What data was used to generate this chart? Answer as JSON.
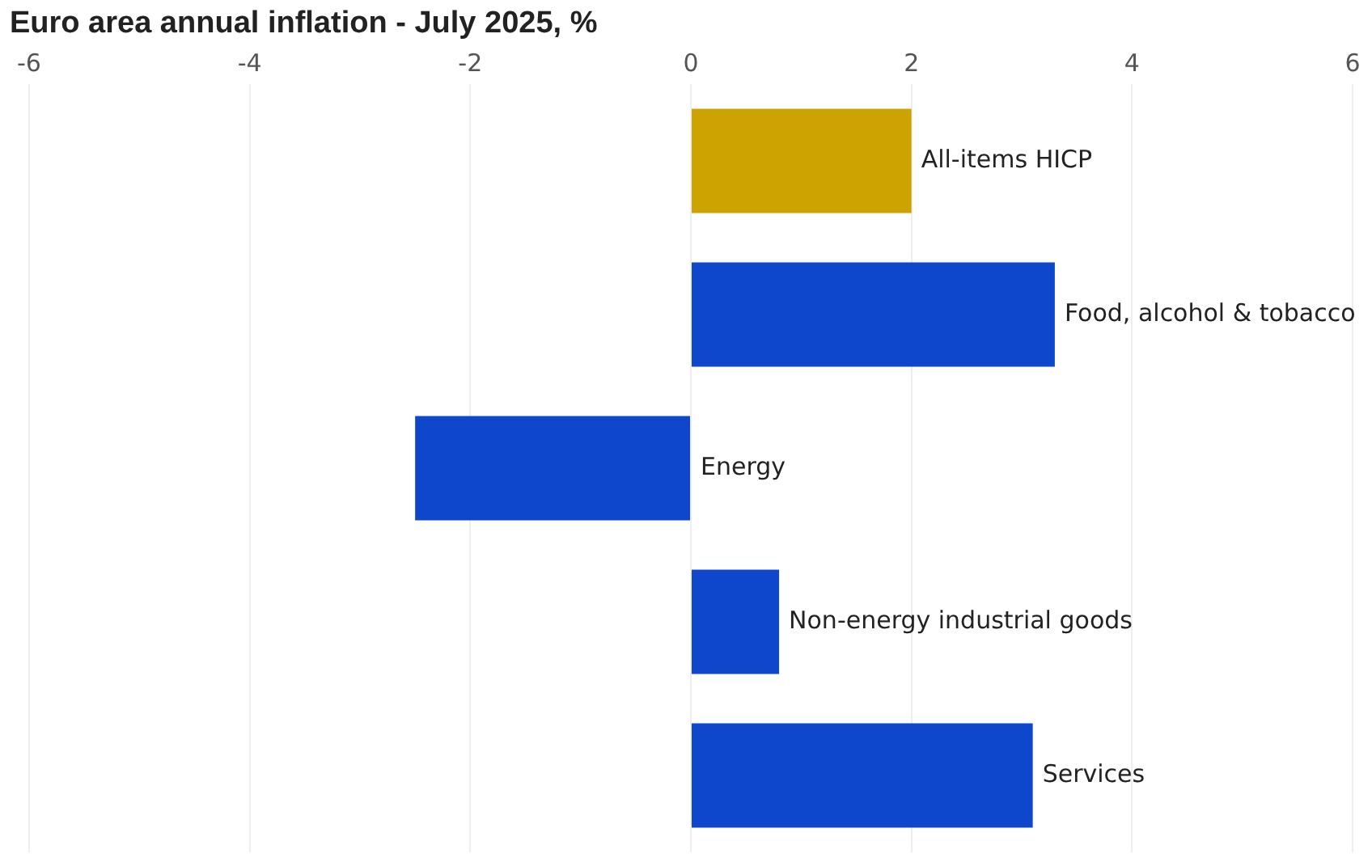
{
  "chart_data": {
    "type": "bar",
    "orientation": "horizontal",
    "title": "Euro area annual inflation - July 2025, %",
    "categories": [
      "All-items HICP",
      "Food, alcohol & tobacco",
      "Energy",
      "Non-energy industrial goods",
      "Services"
    ],
    "values": [
      2.0,
      3.3,
      -2.5,
      0.8,
      3.1
    ],
    "colors": [
      "#cca300",
      "#0e46cc",
      "#0e46cc",
      "#0e46cc",
      "#0e46cc"
    ],
    "xlim": [
      -6,
      6
    ],
    "xticks": [
      -6,
      -4,
      -2,
      0,
      2,
      4,
      6
    ],
    "grid": "x"
  }
}
